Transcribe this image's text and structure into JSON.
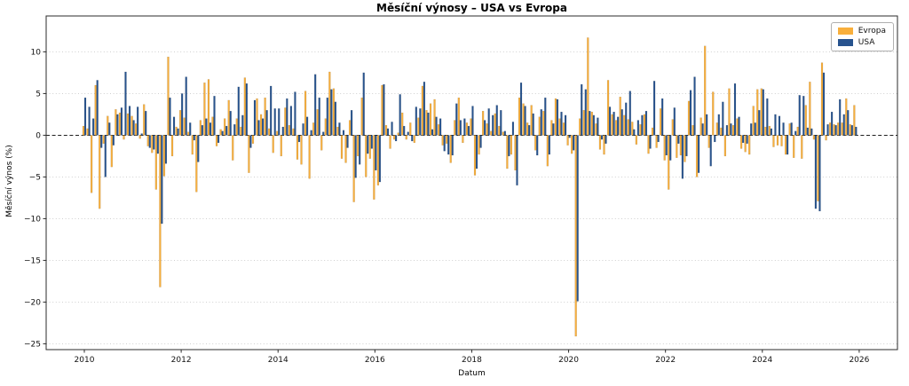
{
  "page": {
    "title": "Měsíční výnosy – USA vs Evropa"
  },
  "chart_data": {
    "type": "bar",
    "title": "Měsíční výnosy – USA vs Evropa",
    "xlabel": "Datum",
    "ylabel": "Měsíční výnos (%)",
    "x_start": "2010-01",
    "x_freq": "monthly",
    "n_months": 192,
    "xticks": [
      2010,
      2012,
      2014,
      2016,
      2018,
      2020,
      2022,
      2024,
      2026
    ],
    "yticks": [
      10,
      5,
      0,
      -5,
      -10,
      -15,
      -20,
      -25
    ],
    "ylim": [
      -25.7,
      14.3
    ],
    "grid": "horizontal dotted gray",
    "zero_line": "black dashed",
    "legend_position": "upper right",
    "series": [
      {
        "name": "Evropa",
        "color": "#F8AF3C",
        "values": [
          1.1,
          0.8,
          -6.9,
          6.0,
          -8.8,
          -1.0,
          2.3,
          -3.8,
          3.1,
          2.7,
          -0.5,
          2.6,
          2.3,
          1.4,
          -0.4,
          3.7,
          -1.3,
          -2.1,
          -6.5,
          -18.2,
          -4.9,
          9.4,
          -2.5,
          1.0,
          3.0,
          2.1,
          0.4,
          -2.3,
          -6.8,
          1.8,
          6.3,
          6.7,
          2.2,
          -1.3,
          0.7,
          2.0,
          4.2,
          -3.0,
          2.0,
          1.0,
          6.9,
          -4.5,
          -1.0,
          4.4,
          2.5,
          4.5,
          0.8,
          -2.1,
          0.5,
          -2.5,
          3.3,
          1.2,
          0.8,
          -2.9,
          -3.5,
          5.3,
          -5.2,
          1.5,
          3.1,
          -1.8,
          2.0,
          7.6,
          5.6,
          1.0,
          -2.8,
          -3.3,
          1.8,
          -8.0,
          -2.5,
          4.5,
          -5.0,
          -2.8,
          -7.7,
          -6.0,
          6.0,
          1.2,
          -1.6,
          -0.5,
          0.3,
          2.7,
          -0.5,
          1.5,
          -0.9,
          2.1,
          5.9,
          3.0,
          3.8,
          4.3,
          1.3,
          -1.2,
          -1.0,
          -3.3,
          1.8,
          4.5,
          -0.9,
          1.5,
          2.0,
          -4.8,
          -2.3,
          2.9,
          1.4,
          0.5,
          2.6,
          1.1,
          0.4,
          -4.0,
          -2.3,
          -4.2,
          4.5,
          3.8,
          1.5,
          3.6,
          -1.8,
          2.2,
          2.9,
          -3.7,
          1.8,
          4.4,
          2.0,
          1.5,
          -1.2,
          -2.2,
          -24.1,
          2.0,
          3.0,
          11.7,
          2.8,
          1.4,
          -1.7,
          -2.3,
          6.6,
          2.5,
          1.8,
          4.6,
          2.4,
          1.9,
          1.6,
          -1.1,
          1.3,
          2.5,
          -2.2,
          0.9,
          -1.5,
          3.2,
          -3.0,
          -6.5,
          1.9,
          -2.7,
          -2.4,
          -3.2,
          4.1,
          1.2,
          -5.0,
          2.1,
          10.7,
          -1.5,
          5.2,
          1.5,
          0.9,
          -2.5,
          5.6,
          1.2,
          2.0,
          -1.6,
          -2.0,
          -2.3,
          3.5,
          5.5,
          5.6,
          1.0,
          1.1,
          -1.4,
          -1.2,
          -1.3,
          -2.3,
          1.4,
          -2.7,
          1.0,
          -2.8,
          3.6,
          6.4,
          -0.5,
          -7.9,
          8.7,
          -0.6,
          1.5,
          1.3,
          1.5,
          1.5,
          4.4,
          1.3,
          3.6
        ]
      },
      {
        "name": "USA",
        "color": "#27538E",
        "values": [
          4.5,
          3.4,
          2.0,
          6.6,
          -1.5,
          -5.0,
          1.5,
          -1.2,
          2.5,
          3.3,
          7.6,
          3.5,
          1.8,
          3.4,
          0.2,
          2.9,
          -1.5,
          -1.7,
          -2.2,
          -10.6,
          -3.4,
          4.5,
          2.2,
          0.8,
          5.0,
          7.0,
          1.5,
          -0.6,
          -3.2,
          1.2,
          2.0,
          1.5,
          4.7,
          -0.9,
          0.5,
          1.1,
          2.9,
          1.3,
          5.8,
          2.4,
          6.2,
          -1.5,
          4.2,
          1.8,
          2.0,
          3.0,
          5.9,
          3.2,
          3.2,
          1.0,
          4.4,
          3.5,
          5.2,
          -0.8,
          1.4,
          2.2,
          0.6,
          7.3,
          4.5,
          0.4,
          4.5,
          5.5,
          4.0,
          1.5,
          0.6,
          -1.5,
          3.0,
          -5.1,
          -3.5,
          7.5,
          -2.2,
          -1.6,
          -4.2,
          -5.6,
          6.1,
          0.8,
          1.6,
          -0.7,
          4.9,
          1.1,
          0.4,
          -0.7,
          3.4,
          3.2,
          6.4,
          2.7,
          0.7,
          2.2,
          2.0,
          -1.9,
          -2.3,
          -2.4,
          3.8,
          1.8,
          2.0,
          1.1,
          3.5,
          -4.0,
          -1.5,
          1.8,
          3.2,
          2.4,
          3.6,
          3.0,
          0.5,
          -2.5,
          1.6,
          -6.0,
          6.3,
          3.5,
          1.2,
          2.6,
          -2.4,
          3.1,
          4.5,
          -2.3,
          1.4,
          4.3,
          2.8,
          2.4,
          -0.3,
          -1.8,
          -19.9,
          6.1,
          5.5,
          2.9,
          2.4,
          2.1,
          -0.5,
          -1.0,
          3.4,
          2.8,
          2.2,
          3.1,
          3.9,
          5.3,
          0.7,
          1.8,
          2.4,
          2.9,
          -1.6,
          6.5,
          -0.8,
          4.4,
          -2.4,
          -3.0,
          3.3,
          -1.0,
          -5.2,
          -2.5,
          5.4,
          7.0,
          -4.5,
          1.4,
          2.5,
          -3.7,
          -0.8,
          2.5,
          4.0,
          1.2,
          1.4,
          6.2,
          2.2,
          -0.9,
          -1.0,
          1.4,
          1.5,
          3.0,
          5.5,
          4.4,
          0.8,
          2.5,
          2.3,
          1.5,
          -2.3,
          1.5,
          0.5,
          4.8,
          4.7,
          0.9,
          0.8,
          -8.8,
          -9.1,
          7.5,
          1.3,
          2.8,
          1.2,
          4.3,
          2.5,
          3.0,
          1.2,
          1.0
        ]
      }
    ]
  }
}
